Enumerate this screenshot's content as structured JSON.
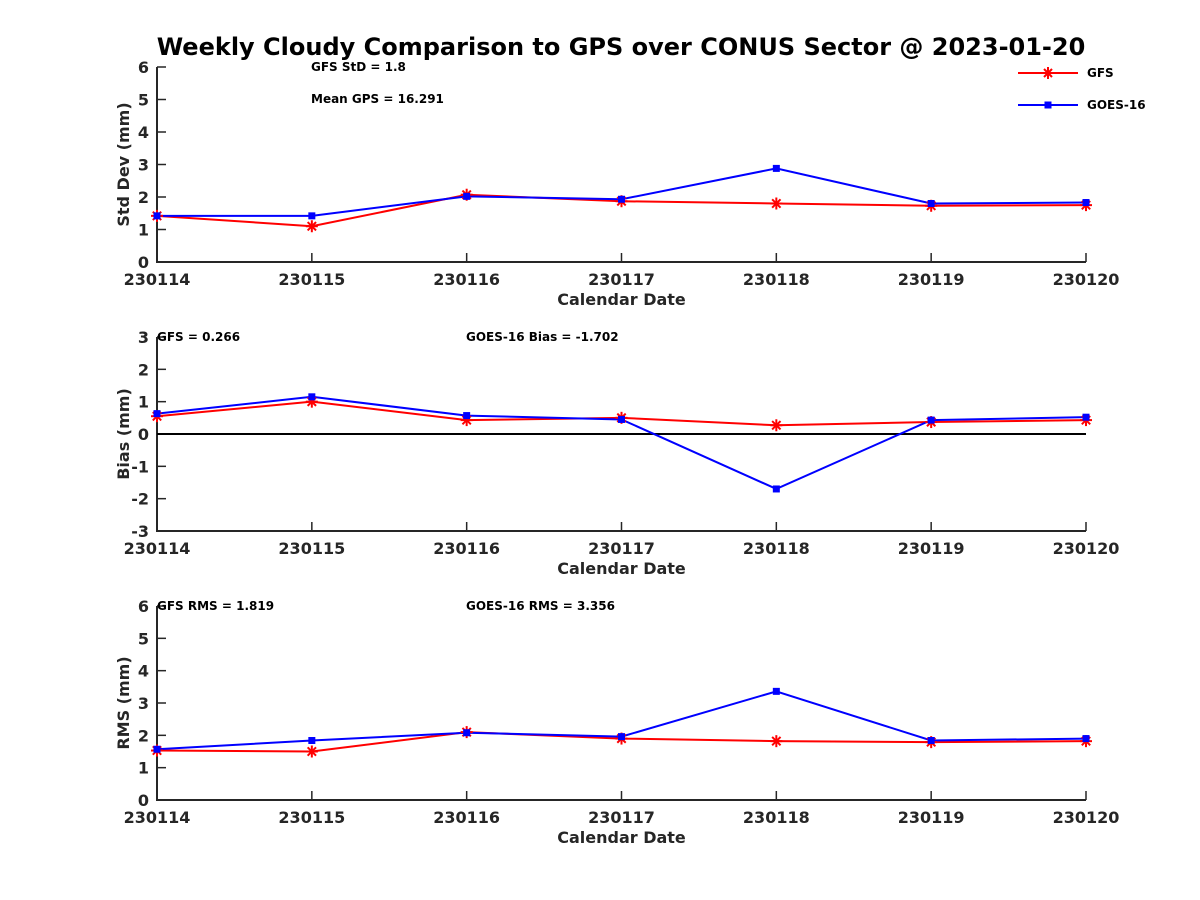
{
  "figure_title": "Weekly Cloudy Comparison to GPS over CONUS Sector @ 2023-01-20",
  "legend": {
    "entries": [
      "GFS",
      "GOES-16"
    ]
  },
  "colors": {
    "GFS": "#ff0000",
    "GOES-16": "#0000ff",
    "zero_line": "#000000"
  },
  "chart_data": [
    {
      "type": "line",
      "categories": [
        "230114",
        "230115",
        "230116",
        "230117",
        "230118",
        "230119",
        "230120"
      ],
      "series": [
        {
          "name": "GFS",
          "marker": "asterisk",
          "values": [
            1.42,
            1.1,
            2.07,
            1.87,
            1.8,
            1.73,
            1.75
          ]
        },
        {
          "name": "GOES-16",
          "marker": "square",
          "values": [
            1.42,
            1.42,
            2.02,
            1.93,
            2.88,
            1.8,
            1.83
          ]
        }
      ],
      "title": "",
      "xlabel": "Calendar Date",
      "ylabel": "Std Dev (mm)",
      "ylim": [
        0,
        6
      ],
      "yticks": [
        0,
        1,
        2,
        3,
        4,
        5,
        6
      ],
      "yticklabels": [
        "0",
        "1",
        "2",
        "3",
        "4",
        "5",
        "6"
      ],
      "annotations": [
        "GFS StD = 1.8",
        "Mean GPS = 16.291"
      ],
      "zero_line": false,
      "grid": false
    },
    {
      "type": "line",
      "categories": [
        "230114",
        "230115",
        "230116",
        "230117",
        "230118",
        "230119",
        "230120"
      ],
      "series": [
        {
          "name": "GFS",
          "marker": "asterisk",
          "values": [
            0.55,
            1.0,
            0.43,
            0.5,
            0.27,
            0.37,
            0.43
          ]
        },
        {
          "name": "GOES-16",
          "marker": "square",
          "values": [
            0.63,
            1.15,
            0.57,
            0.45,
            -1.7,
            0.43,
            0.52
          ]
        }
      ],
      "title": "",
      "xlabel": "Calendar Date",
      "ylabel": "Bias (mm)",
      "ylim": [
        -3,
        3
      ],
      "yticks": [
        -3,
        -2,
        -1,
        0,
        1,
        2,
        3
      ],
      "yticklabels": [
        "-3",
        "-2",
        "-1",
        "0",
        "1",
        "2",
        "3"
      ],
      "annotations": [
        "GFS = 0.266",
        "GOES-16 Bias  = -1.702"
      ],
      "zero_line": true,
      "grid": false
    },
    {
      "type": "line",
      "categories": [
        "230114",
        "230115",
        "230116",
        "230117",
        "230118",
        "230119",
        "230120"
      ],
      "series": [
        {
          "name": "GFS",
          "marker": "asterisk",
          "values": [
            1.53,
            1.5,
            2.1,
            1.9,
            1.82,
            1.79,
            1.82
          ]
        },
        {
          "name": "GOES-16",
          "marker": "square",
          "values": [
            1.57,
            1.84,
            2.08,
            1.96,
            3.36,
            1.84,
            1.9
          ]
        }
      ],
      "title": "",
      "xlabel": "Calendar Date",
      "ylabel": "RMS (mm)",
      "ylim": [
        0,
        6
      ],
      "yticks": [
        0,
        1,
        2,
        3,
        4,
        5,
        6
      ],
      "yticklabels": [
        "0",
        "1",
        "2",
        "3",
        "4",
        "5",
        "6"
      ],
      "annotations": [
        "GFS RMS = 1.819",
        "GOES-16 RMS = 3.356"
      ],
      "zero_line": false,
      "grid": false
    }
  ]
}
